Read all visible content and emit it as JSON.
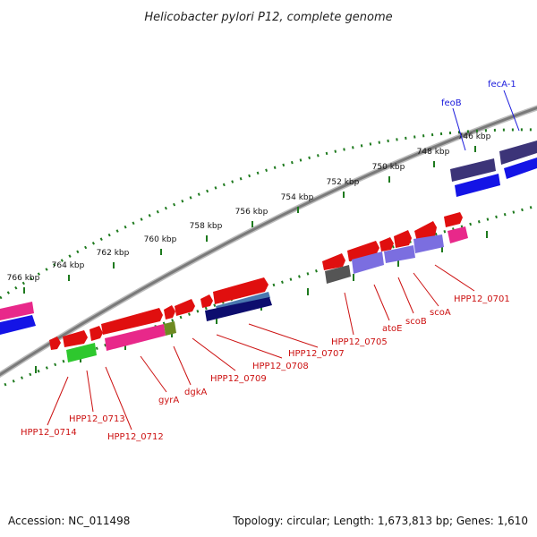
{
  "title": "Helicobacter pylori P12, complete genome",
  "footer": {
    "accession": "Accession: NC_011498",
    "summary": "Topology: circular; Length: 1,673,813 bp; Genes: 1,610"
  },
  "scale_labels": [
    "766 kbp",
    "764 kbp",
    "762 kbp",
    "760 kbp",
    "758 kbp",
    "756 kbp",
    "754 kbp",
    "752 kbp",
    "750 kbp",
    "748 kbp",
    "746 kbp"
  ],
  "gene_labels": [
    {
      "text": "fecA-1",
      "color": "#1a1adc"
    },
    {
      "text": "feoB",
      "color": "#1a1adc"
    },
    {
      "text": "HPP12_0701",
      "color": "#cc1111"
    },
    {
      "text": "scoA",
      "color": "#cc1111"
    },
    {
      "text": "scoB",
      "color": "#cc1111"
    },
    {
      "text": "atoE",
      "color": "#cc1111"
    },
    {
      "text": "HPP12_0705",
      "color": "#cc1111"
    },
    {
      "text": "HPP12_0707",
      "color": "#cc1111"
    },
    {
      "text": "HPP12_0708",
      "color": "#cc1111"
    },
    {
      "text": "HPP12_0709",
      "color": "#cc1111"
    },
    {
      "text": "dgkA",
      "color": "#cc1111"
    },
    {
      "text": "gyrA",
      "color": "#cc1111"
    },
    {
      "text": "HPP12_0712",
      "color": "#cc1111"
    },
    {
      "text": "HPP12_0713",
      "color": "#cc1111"
    },
    {
      "text": "HPP12_0714",
      "color": "#cc1111"
    }
  ],
  "colors": {
    "backbone": "#7a7a7a",
    "tick": "#1e7a1e",
    "cds_red": "#e00f0f",
    "pink": "#e8288a",
    "blue": "#1414e6",
    "dark_purple": "#3c3478",
    "lavender": "#7b6ee0",
    "navy": "#0d0d6e",
    "steel": "#4a78b0",
    "green": "#2ec82e",
    "olive": "#6e8a22",
    "gray": "#555555"
  }
}
